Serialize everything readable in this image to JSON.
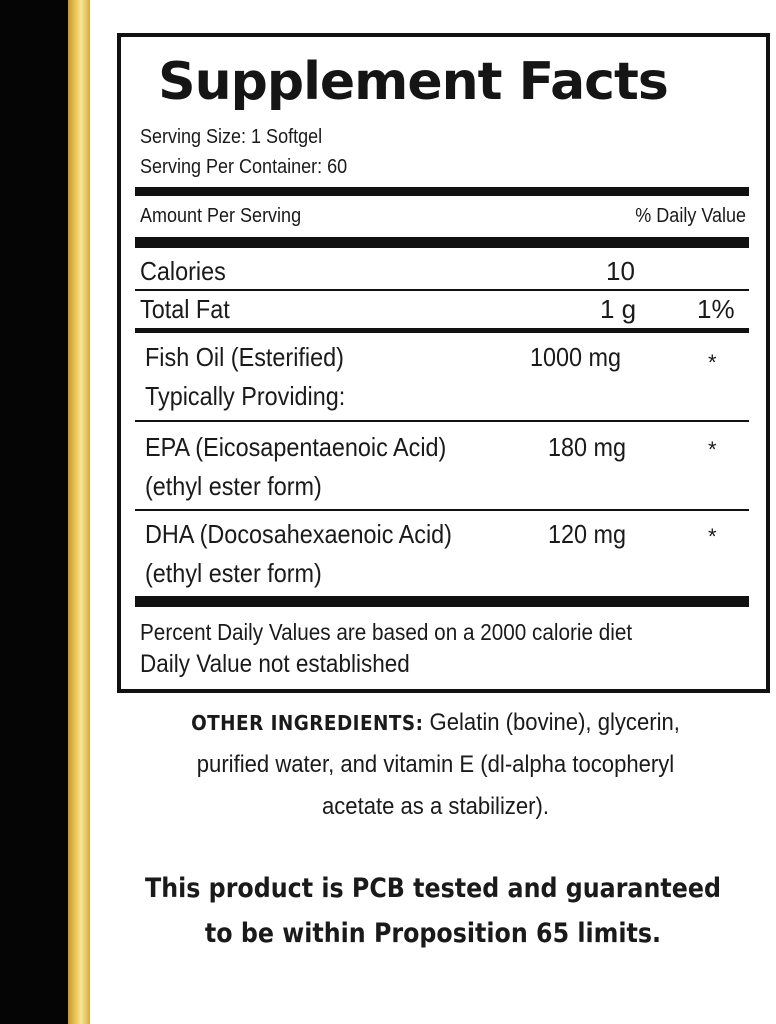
{
  "colors": {
    "stripe_black": "#050505",
    "stripe_gold": "#e6c14f",
    "text": "#1a1a1a"
  },
  "label": {
    "title": "Supplement Facts",
    "serving_size": "Serving Size: 1 Softgel",
    "servings_per_container": "Serving Per Container: 60",
    "amount_header": "Amount Per Serving",
    "dv_header": "% Daily Value",
    "rows": [
      {
        "name": "Calories",
        "amount": "10",
        "dv": ""
      },
      {
        "name": "Total Fat",
        "amount": "1 g",
        "dv": "1%"
      },
      {
        "name": "Fish Oil (Esterified)",
        "sub": "Typically Providing:",
        "amount": "1000 mg",
        "dv": "*"
      },
      {
        "name": "EPA (Eicosapentaenoic Acid)",
        "sub": "(ethyl ester form)",
        "amount": "180 mg",
        "dv": "*"
      },
      {
        "name": "DHA (Docosahexaenoic Acid)",
        "sub": "(ethyl ester form)",
        "amount": "120 mg",
        "dv": "*"
      }
    ],
    "footnote_1": "Percent Daily Values are based on a 2000 calorie diet",
    "footnote_2": "Daily Value not established"
  },
  "other_ingredients": {
    "heading": "OTHER  INGREDIENTS:",
    "line1": " Gelatin (bovine), glycerin,",
    "line2": "purified  water,  and  vitamin E (dl-alpha tocopheryl",
    "line3": "acetate as a stabilizer)."
  },
  "statement": {
    "line1": "This product is PCB tested and guaranteed",
    "line2": "to be within Proposition 65 limits."
  }
}
